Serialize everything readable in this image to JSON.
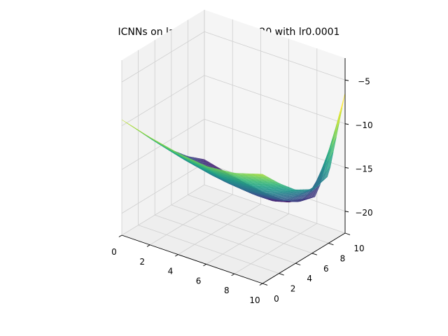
{
  "chart_data": {
    "type": "surface3d",
    "title": "ICNNs on langermann at t = 20 with lr0.0001",
    "xlabel": "",
    "ylabel": "",
    "zlabel": "",
    "x_ticks": [
      "0",
      "2",
      "4",
      "6",
      "8",
      "10"
    ],
    "y_ticks": [
      "0",
      "2",
      "4",
      "6",
      "8",
      "10"
    ],
    "z_ticks": [
      "−5",
      "−10",
      "−15",
      "−20"
    ],
    "xlim": [
      0,
      10
    ],
    "ylim": [
      0,
      10
    ],
    "zlim": [
      -22.5,
      -2.5
    ],
    "grid": true,
    "colormap": "viridis",
    "x": [
      0,
      2,
      4,
      6,
      8,
      10
    ],
    "y": [
      0,
      2,
      4,
      6,
      8,
      10
    ],
    "z": [
      [
        -9.3,
        -11.7,
        -14.1,
        -16.2,
        -18.1,
        -19.6
      ],
      [
        -10.2,
        -12.6,
        -15.0,
        -17.1,
        -18.9,
        -20.4
      ],
      [
        -10.9,
        -13.3,
        -15.7,
        -17.8,
        -19.6,
        -21.0
      ],
      [
        -11.3,
        -13.7,
        -16.1,
        -18.1,
        -19.9,
        -21.2
      ],
      [
        -11.0,
        -13.4,
        -15.7,
        -17.6,
        -18.9,
        -19.4
      ],
      [
        -10.0,
        -12.2,
        -14.1,
        -15.2,
        -14.8,
        -6.5
      ]
    ]
  }
}
